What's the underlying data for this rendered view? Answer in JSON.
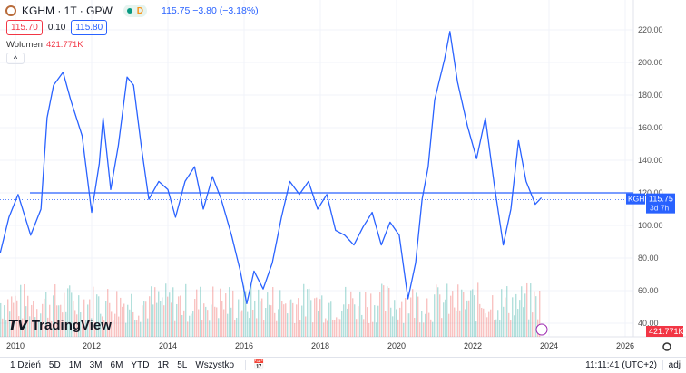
{
  "header": {
    "symbol": "KGHM · 1T · GPW",
    "market_status": "D",
    "last": "115.75",
    "change": "−3.80 (−3.18%)",
    "bid": "115.70",
    "spread": "0.10",
    "ask": "115.80",
    "volume_label": "Wolumen",
    "volume_value": "421.771K"
  },
  "logo": "TradingView",
  "price_tag": {
    "ticker": "KGH",
    "price": "115.75",
    "countdown": "3d 7h"
  },
  "volume_tag": "421.771K",
  "bottom": {
    "ranges": [
      "1 Dzień",
      "5D",
      "1M",
      "3M",
      "6M",
      "YTD",
      "1R",
      "5L",
      "Wszystko"
    ],
    "time": "11:11:41 (UTC+2)",
    "adj": "adj"
  },
  "colors": {
    "line": "#2962ff",
    "up": "#26a69a",
    "down": "#ef5350"
  },
  "chart_data": {
    "type": "line",
    "x_ticks": [
      "2010",
      "2012",
      "2014",
      "2016",
      "2018",
      "2020",
      "2022",
      "2024",
      "2026"
    ],
    "y_ticks": [
      "40.00",
      "60.00",
      "80.00",
      "100.00",
      "120.00",
      "140.00",
      "160.00",
      "180.00",
      "200.00",
      "220.00"
    ],
    "ylim": [
      40,
      220
    ],
    "xlim": [
      2009.6,
      2026.5
    ],
    "horizontal_line": 120,
    "last_price": 115.75,
    "series": [
      {
        "x": [
          2009.6,
          2009.83,
          2010.07,
          2010.4,
          2010.67,
          2010.83,
          2011.0,
          2011.25,
          2011.45,
          2011.75,
          2012.0,
          2012.2,
          2012.3,
          2012.5,
          2012.7,
          2012.93,
          2013.1,
          2013.3,
          2013.5,
          2013.76,
          2014.0,
          2014.2,
          2014.45,
          2014.7,
          2014.93,
          2015.17,
          2015.4,
          2015.67,
          2015.9,
          2016.07,
          2016.26,
          2016.5,
          2016.74,
          2016.98,
          2017.2,
          2017.45,
          2017.69,
          2017.93,
          2018.17,
          2018.4,
          2018.64,
          2018.88,
          2019.12,
          2019.36,
          2019.6,
          2019.83,
          2020.07,
          2020.3,
          2020.5,
          2020.67,
          2020.83,
          2021.0,
          2021.26,
          2021.4,
          2021.6,
          2021.86,
          2022.1,
          2022.33,
          2022.57,
          2022.8,
          2023.0,
          2023.2,
          2023.4,
          2023.64,
          2023.8
        ],
        "y": [
          83,
          105,
          119,
          94,
          110,
          166,
          186,
          194,
          177,
          155,
          108,
          138,
          166,
          122,
          149,
          191,
          186,
          149,
          116,
          127,
          122,
          105,
          127,
          136,
          110,
          130,
          116,
          94,
          72,
          52,
          72,
          61,
          77,
          105,
          127,
          119,
          127,
          110,
          119,
          97,
          94,
          88,
          99,
          108,
          88,
          102,
          94,
          55,
          77,
          116,
          136,
          177,
          202,
          219,
          188,
          161,
          141,
          166,
          124,
          88,
          110,
          152,
          127,
          113,
          117
        ]
      }
    ]
  }
}
